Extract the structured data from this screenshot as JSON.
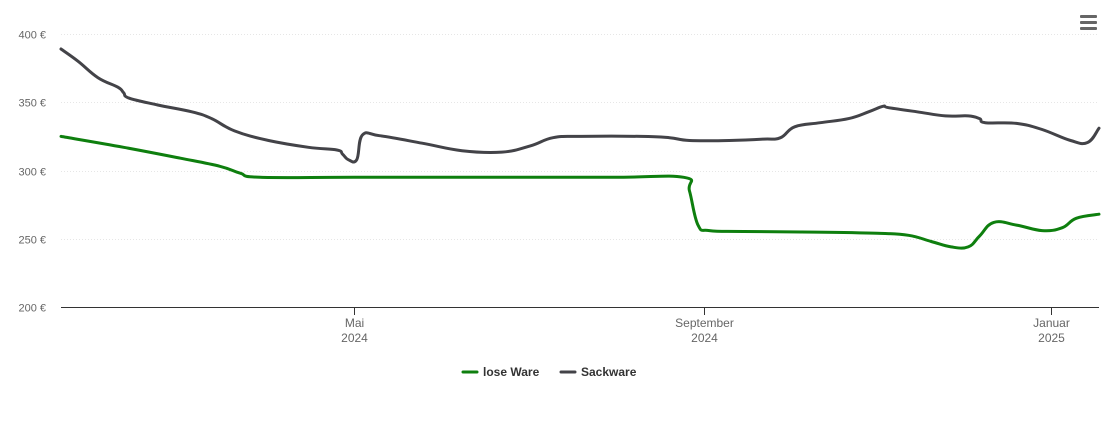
{
  "chart_data": {
    "type": "line",
    "title": "",
    "xlabel": "",
    "ylabel": "",
    "ylim": [
      200,
      400
    ],
    "y_ticks": [
      "200 €",
      "250 €",
      "300 €",
      "350 €",
      "400 €"
    ],
    "y_tick_values": [
      200,
      250,
      300,
      350,
      400
    ],
    "x_ticks": [
      {
        "date": "2024-05-01",
        "line1": "Mai",
        "line2": "2024"
      },
      {
        "date": "2024-09-01",
        "line1": "September",
        "line2": "2024"
      },
      {
        "date": "2025-01-01",
        "line1": "Januar",
        "line2": "2025"
      }
    ],
    "xlim": [
      "2024-01-19",
      "2025-01-18"
    ],
    "grid": true,
    "legend_position": "bottom-center",
    "series": [
      {
        "name": "lose Ware",
        "color": "#0e7f0e",
        "points": [
          [
            "2024-01-19",
            325
          ],
          [
            "2024-02-10",
            317
          ],
          [
            "2024-03-01",
            309
          ],
          [
            "2024-03-15",
            303
          ],
          [
            "2024-03-22",
            298
          ],
          [
            "2024-03-29",
            295
          ],
          [
            "2024-05-01",
            295
          ],
          [
            "2024-06-15",
            295
          ],
          [
            "2024-07-31",
            295
          ],
          [
            "2024-08-25",
            295
          ],
          [
            "2024-08-27",
            285
          ],
          [
            "2024-08-30",
            260
          ],
          [
            "2024-09-03",
            256
          ],
          [
            "2024-09-15",
            255.3
          ],
          [
            "2024-10-10",
            254.9
          ],
          [
            "2024-11-01",
            254
          ],
          [
            "2024-11-12",
            252.5
          ],
          [
            "2024-11-20",
            248
          ],
          [
            "2024-11-27",
            244
          ],
          [
            "2024-12-03",
            244
          ],
          [
            "2024-12-07",
            252
          ],
          [
            "2024-12-12",
            262
          ],
          [
            "2024-12-20",
            260
          ],
          [
            "2024-12-29",
            256
          ],
          [
            "2025-01-05",
            258
          ],
          [
            "2025-01-10",
            265
          ],
          [
            "2025-01-18",
            268
          ]
        ]
      },
      {
        "name": "Sackware",
        "color": "#434348",
        "points": [
          [
            "2024-01-19",
            389
          ],
          [
            "2024-01-25",
            380
          ],
          [
            "2024-02-01",
            368
          ],
          [
            "2024-02-08",
            361
          ],
          [
            "2024-02-10",
            357
          ],
          [
            "2024-02-12",
            353
          ],
          [
            "2024-02-22",
            348
          ],
          [
            "2024-03-05",
            343
          ],
          [
            "2024-03-12",
            338
          ],
          [
            "2024-03-20",
            329
          ],
          [
            "2024-04-01",
            322
          ],
          [
            "2024-04-15",
            317
          ],
          [
            "2024-04-25",
            315
          ],
          [
            "2024-04-27",
            312
          ],
          [
            "2024-04-29",
            308
          ],
          [
            "2024-05-02",
            308
          ],
          [
            "2024-05-04",
            326
          ],
          [
            "2024-05-10",
            325.5
          ],
          [
            "2024-05-25",
            320
          ],
          [
            "2024-06-08",
            314.5
          ],
          [
            "2024-06-22",
            313.5
          ],
          [
            "2024-07-02",
            318
          ],
          [
            "2024-07-10",
            324
          ],
          [
            "2024-07-20",
            325
          ],
          [
            "2024-08-10",
            325
          ],
          [
            "2024-08-20",
            324
          ],
          [
            "2024-08-27",
            322
          ],
          [
            "2024-09-10",
            322
          ],
          [
            "2024-09-22",
            323
          ],
          [
            "2024-09-28",
            324
          ],
          [
            "2024-10-03",
            332
          ],
          [
            "2024-10-12",
            335
          ],
          [
            "2024-10-22",
            338
          ],
          [
            "2024-10-29",
            343
          ],
          [
            "2024-11-03",
            347
          ],
          [
            "2024-11-05",
            346
          ],
          [
            "2024-11-15",
            343
          ],
          [
            "2024-11-25",
            340
          ],
          [
            "2024-12-03",
            340
          ],
          [
            "2024-12-07",
            338
          ],
          [
            "2024-12-09",
            335
          ],
          [
            "2024-12-20",
            334.5
          ],
          [
            "2024-12-29",
            330
          ],
          [
            "2025-01-08",
            322
          ],
          [
            "2025-01-14",
            320.5
          ],
          [
            "2025-01-18",
            331
          ]
        ]
      }
    ]
  },
  "menu": {
    "icon": "hamburger-menu-icon"
  }
}
